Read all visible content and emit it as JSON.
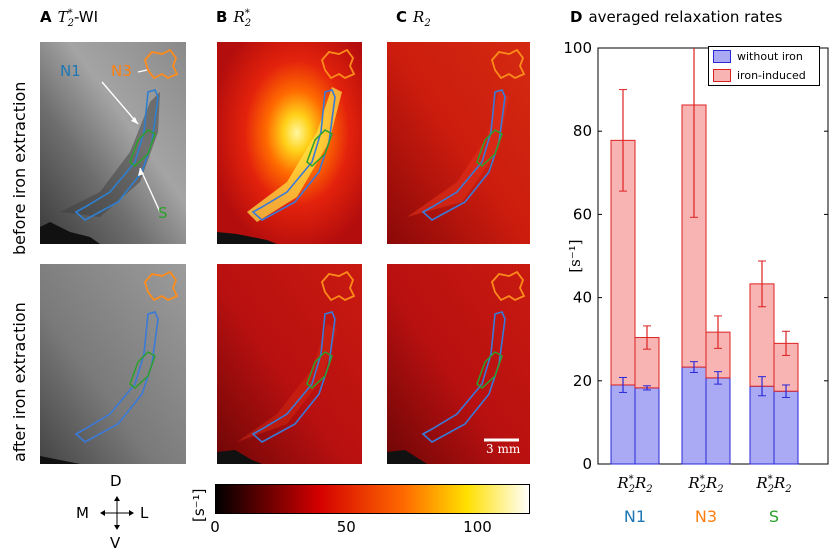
{
  "panels": {
    "a": {
      "letter": "A",
      "title_math": "T",
      "title_sup": "*",
      "title_sub": "2",
      "title_suffix": "-WI"
    },
    "b": {
      "letter": "B",
      "title_math": "R",
      "title_sup": "*",
      "title_sub": "2"
    },
    "c": {
      "letter": "C",
      "title_math": "R",
      "title_sub": "2"
    },
    "d": {
      "letter": "D",
      "title": "averaged relaxation rates"
    }
  },
  "row_labels": {
    "top": "before iron extraction",
    "bottom": "after iron extraction"
  },
  "roi_labels": {
    "n1": "N1",
    "n3": "N3",
    "s": "S"
  },
  "scale_bar": "3 mm",
  "orientation": {
    "d": "D",
    "m": "M",
    "l": "L",
    "v": "V"
  },
  "colorbar": {
    "unit": "[s⁻¹]",
    "ticks": [
      "0",
      "50",
      "100"
    ],
    "min": 0,
    "max": 120
  },
  "colors": {
    "n1": "#1f77b4",
    "n3": "#ff7f0e",
    "s": "#2ca02c",
    "without_iron": "#aaaaf4",
    "iron_induced": "#f8b3b3",
    "blue_edge": "#2828d8",
    "red_edge": "#dd2222"
  },
  "chart_data": {
    "type": "bar",
    "title": "averaged relaxation rates",
    "ylabel": "[s⁻¹]",
    "ylim": [
      0,
      100
    ],
    "yticks": [
      0,
      20,
      40,
      60,
      80,
      100
    ],
    "groups": [
      "N1",
      "N3",
      "S"
    ],
    "bar_labels": [
      "R2*",
      "R2"
    ],
    "legend": {
      "position": "top-right",
      "entries": [
        "without iron",
        "iron-induced"
      ]
    },
    "series": [
      {
        "name": "without iron",
        "values": [
          19.0,
          18.3,
          23.3,
          20.7,
          18.7,
          17.5
        ],
        "errors": [
          1.8,
          0.5,
          1.3,
          1.5,
          2.3,
          1.5
        ]
      },
      {
        "name": "iron-induced",
        "values": [
          58.8,
          12.1,
          63.0,
          11.0,
          24.6,
          11.5
        ],
        "errors": [
          12.2,
          2.8,
          27.0,
          3.9,
          5.5,
          2.9
        ]
      }
    ],
    "totals": [
      77.8,
      30.4,
      86.3,
      31.7,
      43.3,
      29.0
    ]
  }
}
